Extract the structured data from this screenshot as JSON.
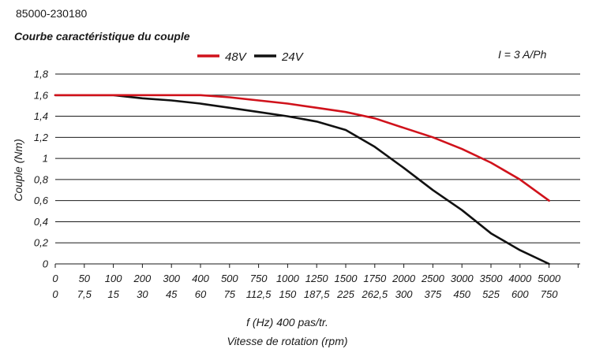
{
  "header": {
    "part_number": "85000-230180"
  },
  "chart_data": {
    "type": "line",
    "title": "Courbe caractéristique du couple",
    "ylabel": "Couple (Nm)",
    "xlabel": "f (Hz) 400 pas/tr.",
    "xlabel2": "Vitesse de rotation (rpm)",
    "annotation": "I = 3 A/Ph",
    "ylim": [
      0,
      1.8
    ],
    "y_ticks": [
      "0",
      "0,2",
      "0,4",
      "0,6",
      "0,8",
      "1",
      "1,2",
      "1,4",
      "1,6",
      "1,8"
    ],
    "x_ticks_hz": [
      "0",
      "50",
      "100",
      "200",
      "300",
      "400",
      "500",
      "750",
      "1000",
      "1250",
      "1500",
      "1750",
      "2000",
      "2500",
      "3000",
      "3500",
      "4000",
      "5000"
    ],
    "x_ticks_rpm": [
      "0",
      "7,5",
      "15",
      "30",
      "45",
      "60",
      "75",
      "112,5",
      "150",
      "187,5",
      "225",
      "262,5",
      "300",
      "375",
      "450",
      "525",
      "600",
      "750"
    ],
    "grid": "horizontal",
    "legend_position": "top-center",
    "series": [
      {
        "name": "48V",
        "color": "#d0121b",
        "x": [
          "0",
          "50",
          "100",
          "200",
          "300",
          "400",
          "500",
          "750",
          "1000",
          "1250",
          "1500",
          "1750",
          "2000",
          "2500",
          "3000",
          "3500",
          "4000",
          "5000"
        ],
        "values": [
          1.6,
          1.6,
          1.6,
          1.6,
          1.6,
          1.6,
          1.58,
          1.55,
          1.52,
          1.48,
          1.44,
          1.38,
          1.29,
          1.2,
          1.09,
          0.96,
          0.8,
          0.6
        ]
      },
      {
        "name": "24V",
        "color": "#111111",
        "x": [
          "0",
          "50",
          "100",
          "200",
          "300",
          "400",
          "500",
          "750",
          "1000",
          "1250",
          "1500",
          "1750",
          "2000",
          "2500",
          "3000",
          "3500",
          "4000",
          "5000"
        ],
        "values": [
          1.6,
          1.6,
          1.6,
          1.57,
          1.55,
          1.52,
          1.48,
          1.44,
          1.4,
          1.35,
          1.27,
          1.11,
          0.91,
          0.7,
          0.51,
          0.29,
          0.13,
          0.0
        ]
      }
    ]
  }
}
